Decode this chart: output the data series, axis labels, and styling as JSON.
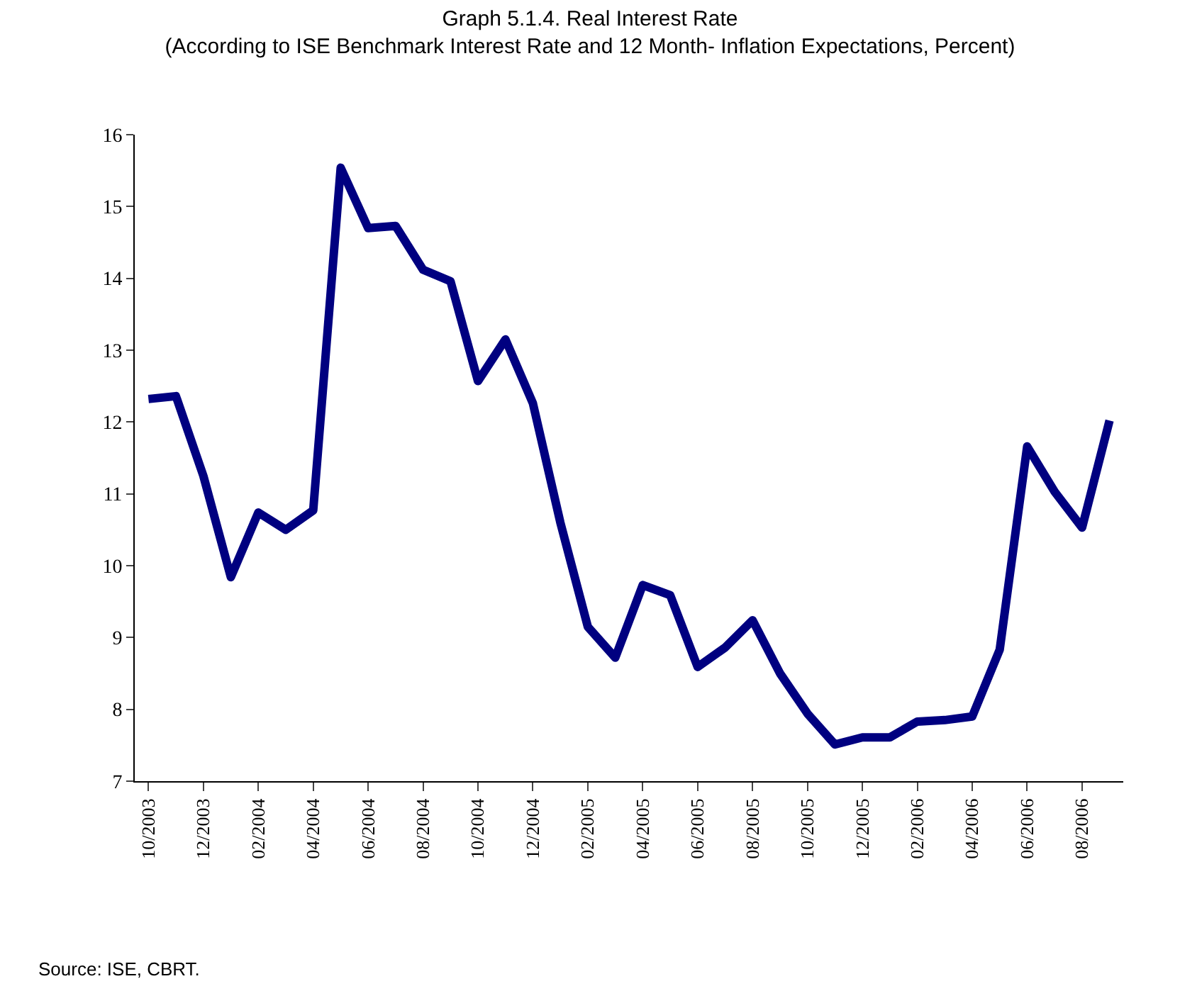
{
  "chart_data": {
    "type": "line",
    "title": "Graph 5.1.4. Real Interest Rate",
    "subtitle": "(According to ISE Benchmark Interest Rate and 12 Month- Inflation Expectations, Percent)",
    "categories": [
      "10/2003",
      null,
      "12/2003",
      null,
      "02/2004",
      null,
      "04/2004",
      null,
      "06/2004",
      null,
      "08/2004",
      null,
      "10/2004",
      null,
      "12/2004",
      null,
      "02/2005",
      null,
      "04/2005",
      null,
      "06/2005",
      null,
      "08/2005",
      null,
      "10/2005",
      null,
      "12/2005",
      null,
      "02/2006",
      null,
      "04/2006",
      null,
      "06/2006",
      null,
      "08/2006",
      null
    ],
    "series": [
      {
        "color": "#000080",
        "values": [
          12.32,
          12.36,
          11.25,
          9.84,
          10.74,
          10.5,
          10.77,
          15.54,
          14.7,
          14.73,
          14.12,
          13.96,
          12.57,
          13.15,
          12.26,
          10.6,
          9.15,
          8.72,
          9.73,
          9.59,
          8.59,
          8.86,
          9.24,
          8.5,
          7.94,
          7.51,
          7.61,
          7.61,
          7.83,
          7.85,
          7.9,
          8.83,
          11.66,
          11.03,
          10.53,
          12.02
        ]
      }
    ],
    "ylim": [
      7,
      16
    ],
    "yticks": [
      7,
      8,
      9,
      10,
      11,
      12,
      13,
      14,
      15,
      16
    ],
    "line_style": "solid",
    "marker": "none",
    "annotations": [
      "Source: ISE, CBRT."
    ]
  }
}
